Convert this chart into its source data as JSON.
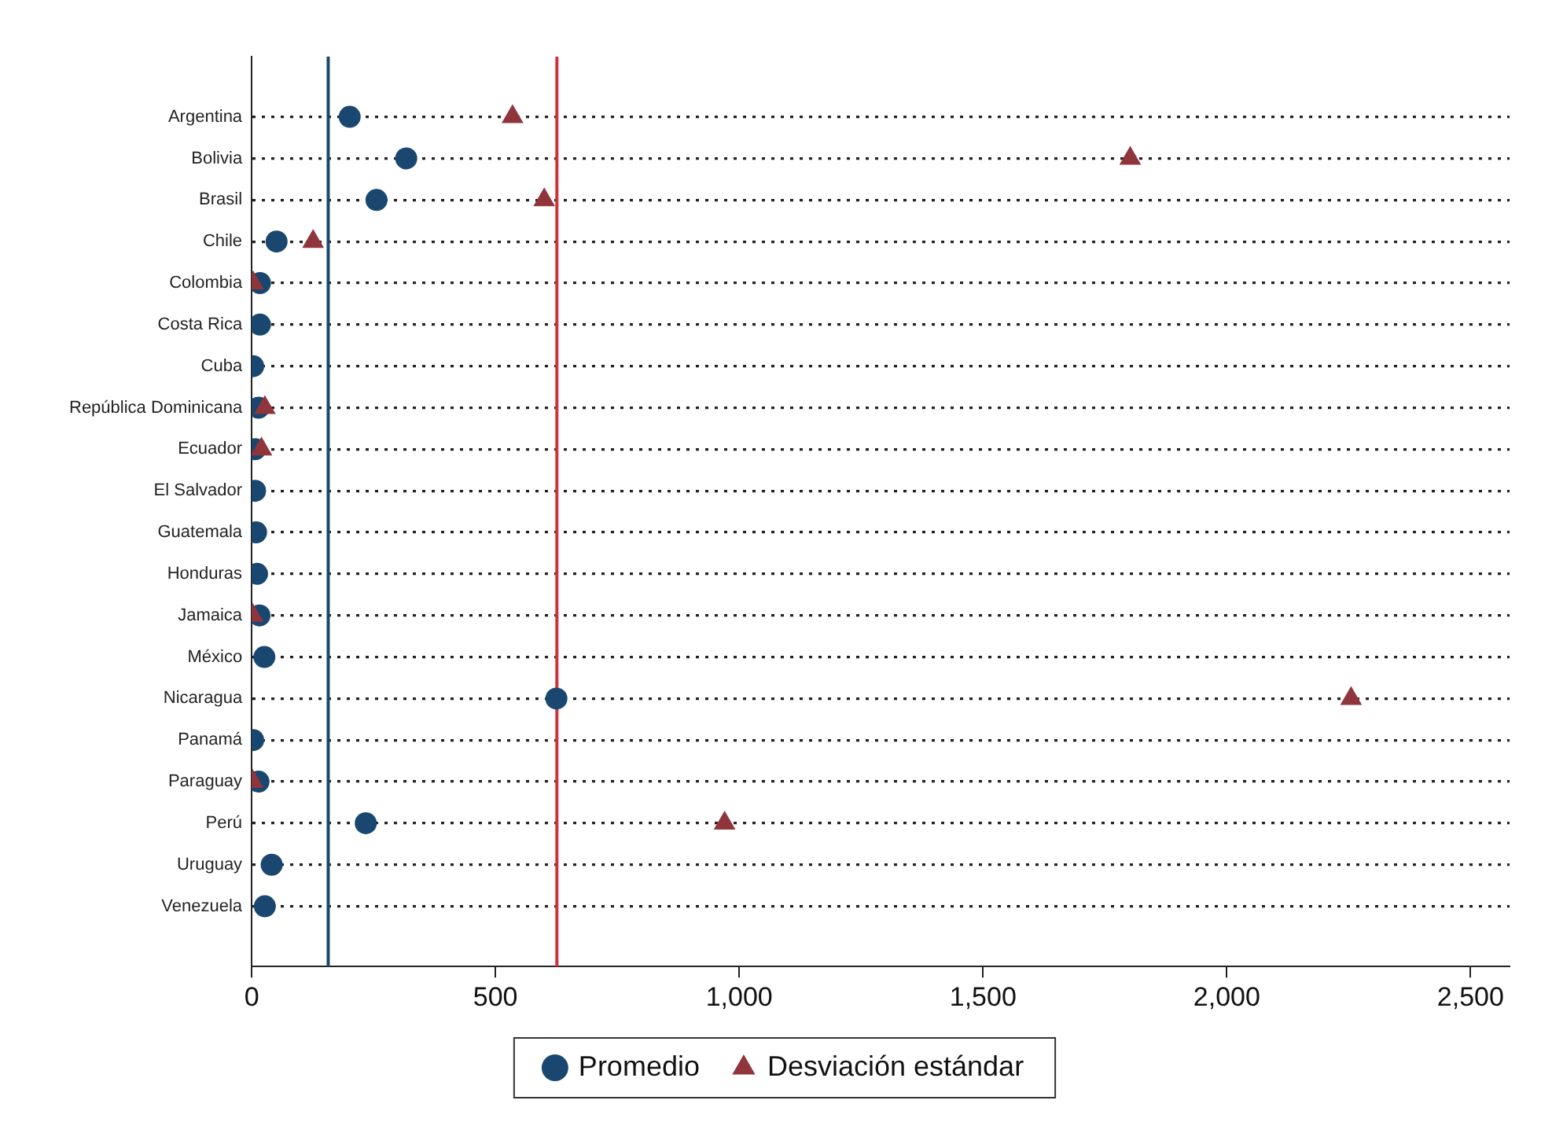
{
  "chart_data": {
    "type": "scatter",
    "orientation": "horizontal",
    "categories": [
      "Argentina",
      "Bolivia",
      "Brasil",
      "Chile",
      "Colombia",
      "Costa Rica",
      "Cuba",
      "República Dominicana",
      "Ecuador",
      "El Salvador",
      "Guatemala",
      "Honduras",
      "Jamaica",
      "México",
      "Nicaragua",
      "Panamá",
      "Paraguay",
      "Perú",
      "Uruguay",
      "Venezuela"
    ],
    "series": [
      {
        "name": "Promedio",
        "color": "#1a476f",
        "marker": "circle",
        "values": [
          201,
          317,
          256,
          51,
          17,
          17,
          3,
          14,
          7,
          7,
          9,
          11,
          16,
          26,
          625,
          3,
          14,
          234,
          41,
          27
        ]
      },
      {
        "name": "Desviación estándar",
        "color": "#90353b",
        "marker": "triangle",
        "values": [
          535,
          1802,
          600,
          126,
          3,
          null,
          null,
          27,
          20,
          null,
          null,
          null,
          2,
          null,
          2255,
          null,
          2,
          970,
          null,
          null
        ]
      }
    ],
    "xlim": [
      0,
      2580
    ],
    "xticks": [
      0,
      500,
      {
        "value": 1000,
        "label": "1,000"
      },
      {
        "value": 1500,
        "label": "1,500"
      },
      {
        "value": 2000,
        "label": "2,000"
      },
      {
        "value": 2500,
        "label": "2,500"
      }
    ],
    "ref_lines": [
      {
        "axis": "x",
        "value": 157,
        "color": "#1a476f"
      },
      {
        "axis": "x",
        "value": 626,
        "color": "#d1313d"
      }
    ],
    "grid": "y",
    "legend": "bottom"
  }
}
